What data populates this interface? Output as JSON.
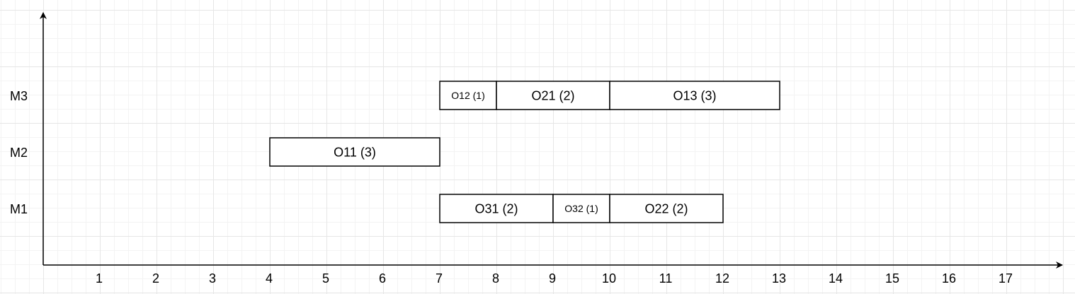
{
  "chart_data": {
    "type": "gantt",
    "x_ticks": [
      1,
      2,
      3,
      4,
      5,
      6,
      7,
      8,
      9,
      10,
      11,
      12,
      13,
      14,
      15,
      16,
      17
    ],
    "machines": [
      "M1",
      "M2",
      "M3"
    ],
    "operations": [
      {
        "label": "O12 (1)",
        "machine": "M3",
        "start": 7,
        "duration": 1
      },
      {
        "label": "O21 (2)",
        "machine": "M3",
        "start": 8,
        "duration": 2
      },
      {
        "label": "O13 (3)",
        "machine": "M3",
        "start": 10,
        "duration": 3
      },
      {
        "label": "O11 (3)",
        "machine": "M2",
        "start": 4,
        "duration": 3
      },
      {
        "label": "O31 (2)",
        "machine": "M1",
        "start": 7,
        "duration": 2
      },
      {
        "label": "O32 (1)",
        "machine": "M1",
        "start": 9,
        "duration": 1
      },
      {
        "label": "O22 (2)",
        "machine": "M1",
        "start": 10,
        "duration": 2
      }
    ]
  }
}
